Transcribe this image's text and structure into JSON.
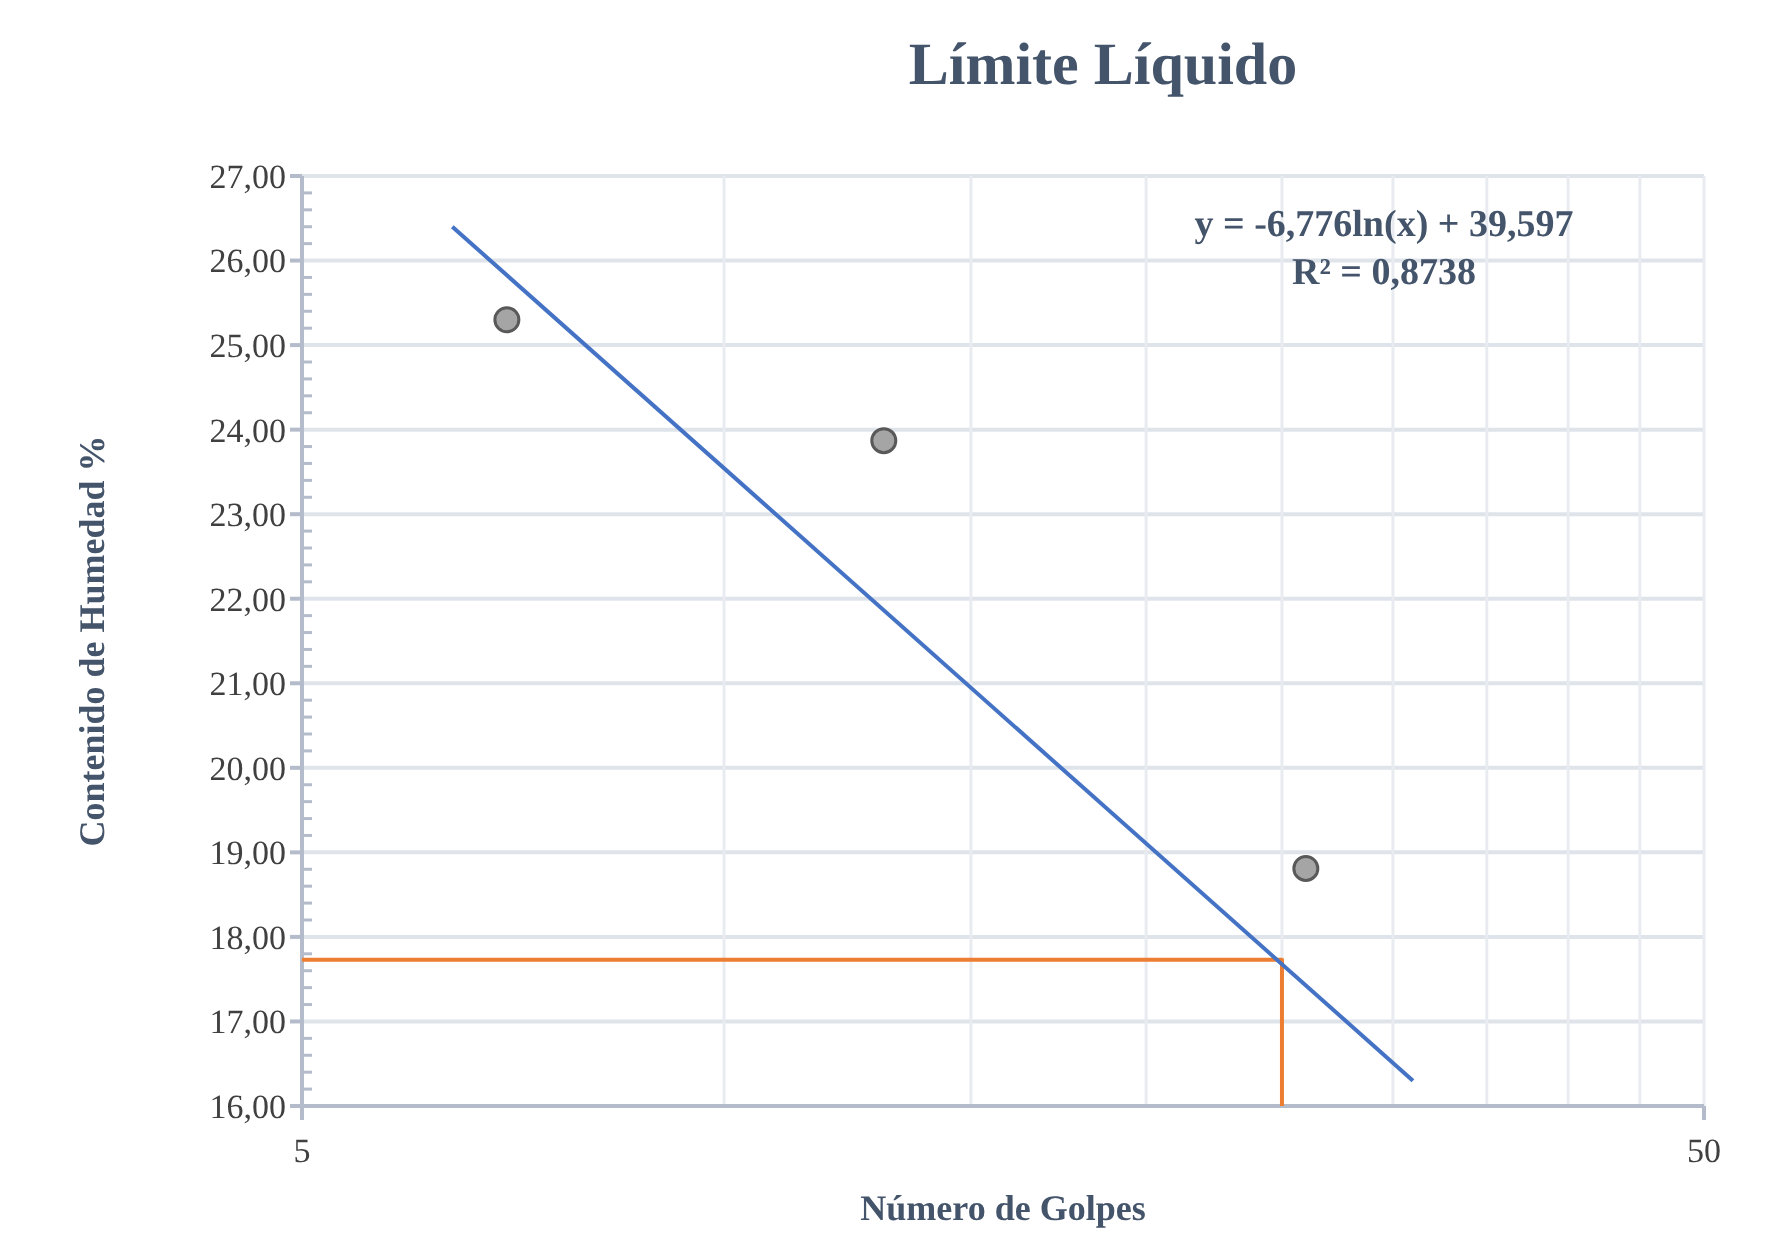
{
  "chart_data": {
    "type": "scatter",
    "title": "Límite Líquido",
    "xlabel": "Número de Golpes",
    "ylabel": "Contenido de Humedad %",
    "log": "x",
    "xlim": [
      5,
      50
    ],
    "xticks": [
      5,
      {
        "value": 10,
        "label": null
      },
      {
        "value": 15,
        "label": null
      },
      {
        "value": 20,
        "label": null
      },
      {
        "value": 25,
        "label": null
      },
      {
        "value": 30,
        "label": null
      },
      {
        "value": 35,
        "label": null
      },
      {
        "value": 40,
        "label": null
      },
      {
        "value": 45,
        "label": null
      },
      50
    ],
    "ylim": [
      16,
      27
    ],
    "yticks": [
      {
        "value": 16,
        "label": "16,00"
      },
      {
        "value": 17,
        "label": "17,00"
      },
      {
        "value": 18,
        "label": "18,00"
      },
      {
        "value": 19,
        "label": "19,00"
      },
      {
        "value": 20,
        "label": "20,00"
      },
      {
        "value": 21,
        "label": "21,00"
      },
      {
        "value": 22,
        "label": "22,00"
      },
      {
        "value": 23,
        "label": "23,00"
      },
      {
        "value": 24,
        "label": "24,00"
      },
      {
        "value": 25,
        "label": "25,00"
      },
      {
        "value": 26,
        "label": "26,00"
      },
      {
        "value": 27,
        "label": "27,00"
      }
    ],
    "grid": true,
    "series": [
      {
        "type": "line",
        "color": "#ed7d31",
        "marker": "none",
        "x": [
          5,
          25,
          25
        ],
        "values": [
          17.73,
          17.73,
          16
        ]
      },
      {
        "type": "line",
        "color": "#4472c4",
        "marker": "none",
        "x": [
          6.4,
          31
        ],
        "values": [
          26.4,
          16.3
        ]
      },
      {
        "color": "#a5a5a5",
        "marker": "circle",
        "x": [
          7.0,
          13.0,
          26.0
        ],
        "values": [
          25.3,
          23.87,
          18.81
        ]
      }
    ],
    "annotations": [
      "y = -6,776ln(x) + 39,597",
      "R² = 0,8738"
    ]
  }
}
